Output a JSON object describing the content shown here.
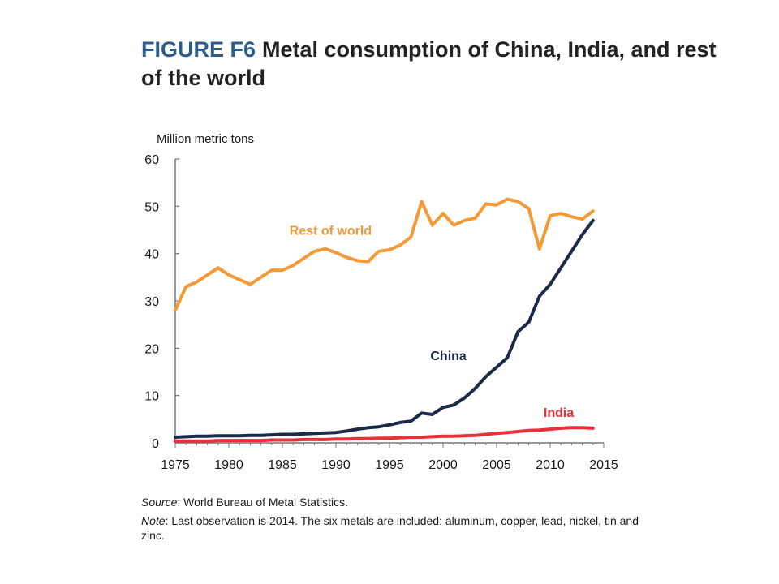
{
  "figure": {
    "label": "FIGURE F6",
    "title": "Metal consumption of China, India, and rest of the world"
  },
  "chart_data": {
    "type": "line",
    "ylabel": "Million metric tons",
    "xlim": [
      1975,
      2015
    ],
    "ylim": [
      0,
      60
    ],
    "x_ticks": [
      1975,
      1980,
      1985,
      1990,
      1995,
      2000,
      2005,
      2010,
      2015
    ],
    "y_ticks": [
      0,
      10,
      20,
      30,
      40,
      50,
      60
    ],
    "grid": false,
    "x": [
      1975,
      1976,
      1977,
      1978,
      1979,
      1980,
      1981,
      1982,
      1983,
      1984,
      1985,
      1986,
      1987,
      1988,
      1989,
      1990,
      1991,
      1992,
      1993,
      1994,
      1995,
      1996,
      1997,
      1998,
      1999,
      2000,
      2001,
      2002,
      2003,
      2004,
      2005,
      2006,
      2007,
      2008,
      2009,
      2010,
      2011,
      2012,
      2013,
      2014
    ],
    "series": [
      {
        "name": "Rest of world",
        "label": "Rest of world",
        "color": "#f39a37",
        "values": [
          28,
          33,
          34,
          35.5,
          37,
          35.5,
          34.5,
          33.5,
          35,
          36.5,
          36.5,
          37.5,
          39,
          40.5,
          41,
          40.2,
          39.2,
          38.5,
          38.3,
          40.5,
          40.8,
          41.8,
          43.5,
          51,
          46,
          48.5,
          46,
          47,
          47.5,
          50.5,
          50.3,
          51.5,
          51,
          49.5,
          41,
          48,
          48.5,
          47.8,
          47.3,
          49
        ]
      },
      {
        "name": "China",
        "label": "China",
        "color": "#1b2a4a",
        "values": [
          1.2,
          1.3,
          1.4,
          1.4,
          1.5,
          1.5,
          1.5,
          1.6,
          1.6,
          1.7,
          1.8,
          1.8,
          1.9,
          2,
          2.1,
          2.2,
          2.5,
          2.9,
          3.2,
          3.4,
          3.8,
          4.3,
          4.6,
          6.3,
          6,
          7.5,
          8,
          9.5,
          11.5,
          14,
          16,
          18,
          23.5,
          25.5,
          31,
          33.5,
          37,
          40.5,
          44,
          47
        ]
      },
      {
        "name": "India",
        "label": "India",
        "color": "#e8303a",
        "values": [
          0.4,
          0.4,
          0.4,
          0.4,
          0.5,
          0.5,
          0.5,
          0.5,
          0.5,
          0.6,
          0.6,
          0.6,
          0.7,
          0.7,
          0.7,
          0.8,
          0.8,
          0.9,
          0.9,
          1,
          1,
          1.1,
          1.2,
          1.2,
          1.3,
          1.4,
          1.4,
          1.5,
          1.6,
          1.8,
          2,
          2.2,
          2.4,
          2.6,
          2.7,
          2.9,
          3.1,
          3.2,
          3.2,
          3.1
        ]
      }
    ]
  },
  "notes": {
    "source_label": "Source",
    "source_text": ":  World Bureau of Metal Statistics.",
    "note_label": "Note",
    "note_text": ": Last observation is 2014. The six metals are included: aluminum, copper, lead, nickel, tin and zinc."
  }
}
